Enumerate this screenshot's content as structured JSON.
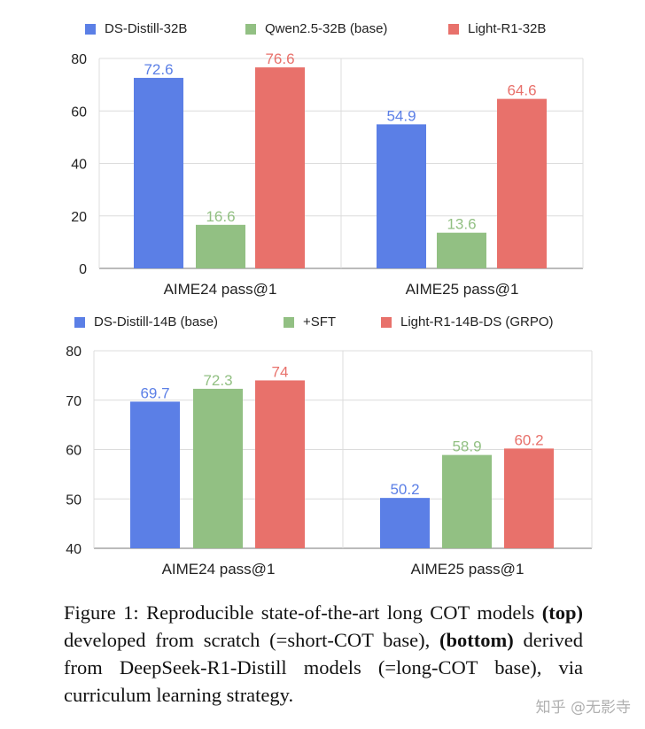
{
  "chart_data": [
    {
      "type": "bar",
      "categories": [
        "AIME24 pass@1",
        "AIME25 pass@1"
      ],
      "series": [
        {
          "name": "DS-Distill-32B",
          "values": [
            72.6,
            54.9
          ],
          "color": "#5b7fe6"
        },
        {
          "name": "Qwen2.5-32B (base)",
          "values": [
            16.6,
            13.6
          ],
          "color": "#92c083"
        },
        {
          "name": "Light-R1-32B",
          "values": [
            76.6,
            64.6
          ],
          "color": "#e8716b"
        }
      ],
      "ylim": [
        0,
        80
      ],
      "yticks": [
        0,
        20,
        40,
        60,
        80
      ],
      "grid": true,
      "legend": "top"
    },
    {
      "type": "bar",
      "categories": [
        "AIME24 pass@1",
        "AIME25 pass@1"
      ],
      "series": [
        {
          "name": "DS-Distill-14B (base)",
          "values": [
            69.7,
            50.2
          ],
          "color": "#5b7fe6"
        },
        {
          "name": "+SFT",
          "values": [
            72.3,
            58.9
          ],
          "color": "#92c083"
        },
        {
          "name": "Light-R1-14B-DS (GRPO)",
          "values": [
            74,
            60.2
          ],
          "color": "#e8716b"
        }
      ],
      "ylim": [
        40,
        80
      ],
      "yticks": [
        40,
        50,
        60,
        70,
        80
      ],
      "grid": true,
      "legend": "top"
    }
  ],
  "caption": {
    "p1": "Figure 1: Reproducible state-of-the-art long COT models ",
    "b1": "(top)",
    "p2": " developed from scratch (=short-COT base), ",
    "b2": "(bottom)",
    "p3": " derived from DeepSeek-R1-Distill models (=long-COT base), via curriculum learning strategy."
  },
  "watermark": "知乎 @无影寺"
}
